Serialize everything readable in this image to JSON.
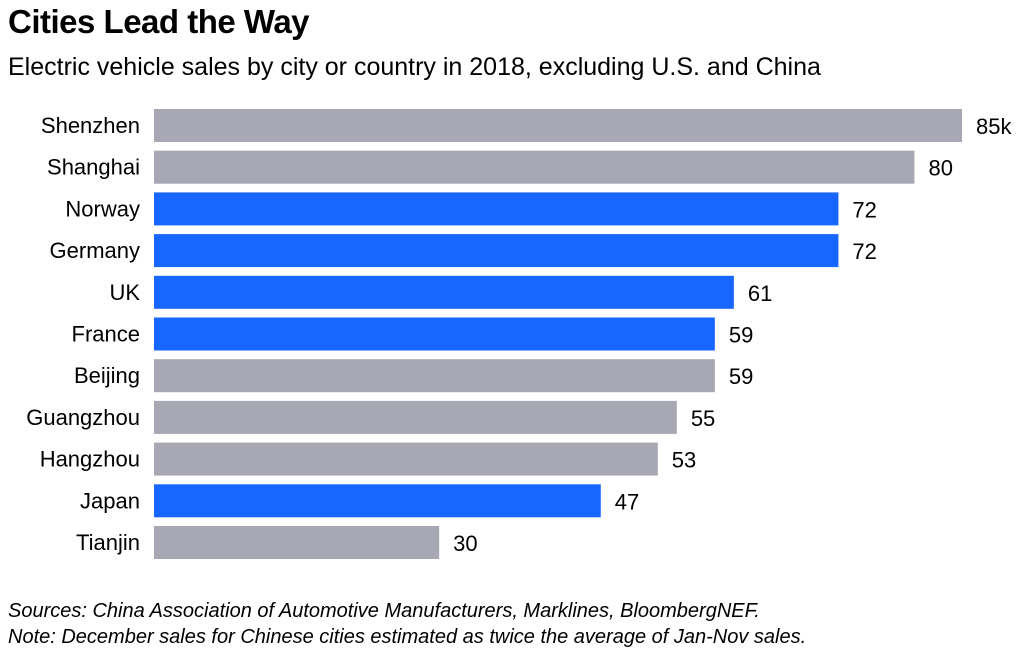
{
  "chart_data": {
    "type": "bar",
    "orientation": "horizontal",
    "title": "Cities Lead the Way",
    "subtitle": "Electric vehicle sales by city or country in 2018, excluding U.S. and China",
    "categories": [
      "Shenzhen",
      "Shanghai",
      "Norway",
      "Germany",
      "UK",
      "France",
      "Beijing",
      "Guangzhou",
      "Hangzhou",
      "Japan",
      "Tianjin"
    ],
    "values": [
      85,
      80,
      72,
      72,
      61,
      59,
      59,
      55,
      53,
      47,
      30
    ],
    "value_labels": [
      "85k",
      "80",
      "72",
      "72",
      "61",
      "59",
      "59",
      "55",
      "53",
      "47",
      "30"
    ],
    "groups": [
      "city",
      "city",
      "country",
      "country",
      "country",
      "country",
      "city",
      "city",
      "city",
      "country",
      "city"
    ],
    "unit": "thousand vehicles",
    "xlim": [
      0,
      85
    ],
    "grid": false,
    "colors": {
      "city": "#a8a8b4",
      "country": "#1766ff"
    }
  },
  "footer": {
    "sources": "Sources: China Association of Automotive Manufacturers, Marklines, BloombergNEF.",
    "note": "Note: December sales for Chinese cities estimated as twice the average of Jan-Nov sales."
  }
}
